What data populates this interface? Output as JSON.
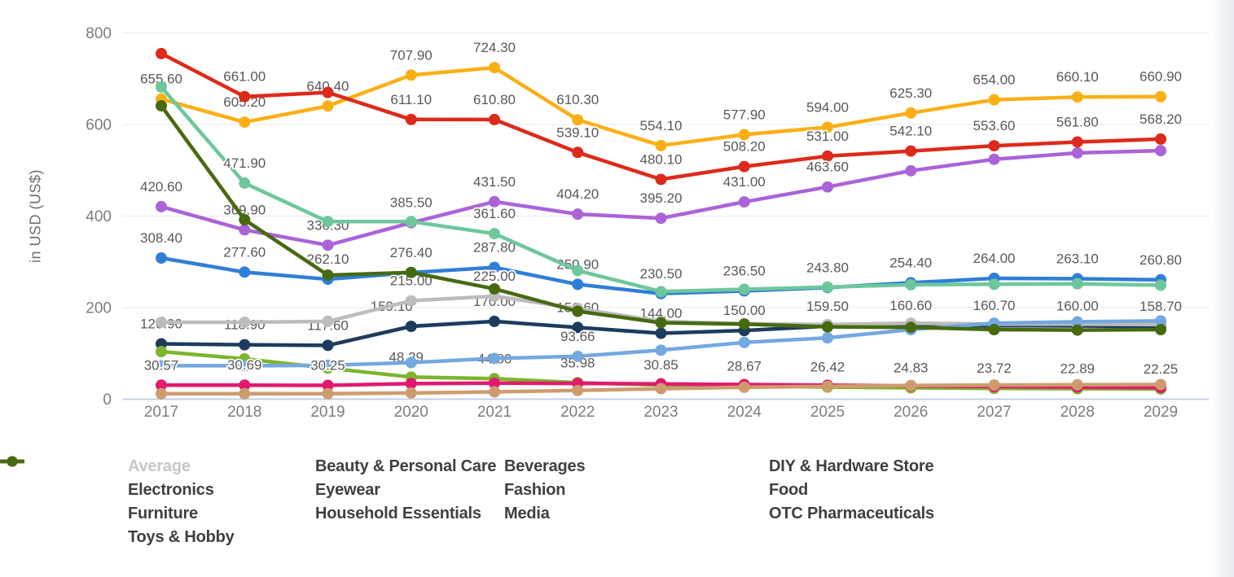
{
  "y_axis": {
    "title": "in USD (US$)",
    "ticks": [
      "0",
      "200",
      "400",
      "600",
      "800"
    ],
    "tick_values": [
      0,
      200,
      400,
      600,
      800
    ]
  },
  "x_axis": {
    "years": [
      "2017",
      "2018",
      "2019",
      "2020",
      "2021",
      "2022",
      "2023",
      "2024",
      "2025",
      "2026",
      "2027",
      "2028",
      "2029"
    ]
  },
  "chart_data": {
    "type": "line",
    "title": "",
    "ylabel": "in USD (US$)",
    "ylim": [
      0,
      800
    ],
    "grid": true,
    "legend_position": "bottom",
    "x": [
      2017,
      2018,
      2019,
      2020,
      2021,
      2022,
      2023,
      2024,
      2025,
      2026,
      2027,
      2028,
      2029
    ],
    "series": [
      {
        "name": "Average",
        "color": "#d2d2d2",
        "hidden": true,
        "values": []
      },
      {
        "name": "Beauty & Personal Care",
        "color": "#2f7ed8",
        "hidden": false,
        "values": [
          308.4,
          277.6,
          262.1,
          276.4,
          287.8,
          250.9,
          230.5,
          236.5,
          243.8,
          254.4,
          264.0,
          263.1,
          260.8
        ],
        "labels": {
          "0": "308.40",
          "1": "277.60",
          "2": "262.10",
          "3": "276.40",
          "4": "287.80",
          "5": "250.90",
          "6": "230.50",
          "7": "236.50",
          "8": "243.80",
          "9": "254.40",
          "10": "264.00",
          "11": "263.10",
          "12": "260.80"
        }
      },
      {
        "name": "Beverages",
        "color": "#1d3b5d",
        "hidden": false,
        "values": [
          120.9,
          118.9,
          117.6,
          159.1,
          170.0,
          156.6,
          144.0,
          150.0,
          159.5,
          160.6,
          160.7,
          160.0,
          158.7
        ],
        "labels": {
          "0": "120.90",
          "1": "118.90",
          "2": "117.60",
          "3": "159.10",
          "4": "170.00",
          "5": "156.60",
          "6": "144.00",
          "7": "150.00",
          "8": "159.50",
          "9": "160.60",
          "10": "160.70",
          "11": "160.00",
          "12": "158.70"
        },
        "label_dx": {
          "3": -24
        }
      },
      {
        "name": "DIY & Hardware Store",
        "color": "#bcbcbc",
        "hidden": false,
        "values": [
          168,
          168,
          170,
          215.0,
          225.0,
          198,
          170,
          165,
          163,
          166,
          164,
          164,
          163
        ],
        "labels": {
          "3": "215.00",
          "4": "225.00"
        }
      },
      {
        "name": "Electronics",
        "color": "#fbaf17",
        "hidden": false,
        "values": [
          655.6,
          605.2,
          640.4,
          707.9,
          724.3,
          610.3,
          554.1,
          577.9,
          594.0,
          625.3,
          654.0,
          660.1,
          660.9
        ],
        "labels": {
          "0": "655.60",
          "1": "605.20",
          "2": "640.40",
          "3": "707.90",
          "4": "724.30",
          "5": "610.30",
          "6": "554.10",
          "7": "577.90",
          "8": "594.00",
          "9": "625.30",
          "10": "654.00",
          "11": "660.10",
          "12": "660.90"
        }
      },
      {
        "name": "Eyewear",
        "color": "#7cb52c",
        "hidden": false,
        "values": [
          104,
          88,
          68,
          48.29,
          44.8,
          35.98,
          30.85,
          28.67,
          26.42,
          24.83,
          23.72,
          22.89,
          22.25
        ],
        "labels": {
          "3": "48.29",
          "4": "44.80",
          "5": "35.98",
          "6": "30.85",
          "7": "28.67",
          "8": "26.42",
          "9": "24.83",
          "10": "23.72",
          "11": "22.89",
          "12": "22.25"
        },
        "label_dx": {
          "3": -6
        }
      },
      {
        "name": "Fashion",
        "color": "#dd2a1b",
        "hidden": false,
        "values": [
          755,
          661.0,
          670,
          611.1,
          610.8,
          539.1,
          480.1,
          508.2,
          531.0,
          542.1,
          553.6,
          561.8,
          568.2
        ],
        "labels": {
          "1": "661.00",
          "3": "611.10",
          "4": "610.80",
          "5": "539.10",
          "6": "480.10",
          "7": "508.20",
          "8": "531.00",
          "9": "542.10",
          "10": "553.60",
          "11": "561.80",
          "12": "568.20"
        }
      },
      {
        "name": "Food",
        "color": "#ab63d8",
        "hidden": false,
        "values": [
          420.6,
          369.9,
          336.3,
          385.5,
          431.5,
          404.2,
          395.2,
          431.0,
          463.6,
          499,
          524,
          538,
          543
        ],
        "labels": {
          "0": "420.60",
          "1": "369.90",
          "2": "336.30",
          "3": "385.50",
          "4": "431.50",
          "5": "404.20",
          "6": "395.20",
          "7": "431.00",
          "8": "463.60"
        }
      },
      {
        "name": "Furniture",
        "color": "#6ec79b",
        "hidden": false,
        "values": [
          682,
          471.9,
          388,
          388,
          361.6,
          281,
          235,
          240,
          245,
          250,
          251,
          252,
          249
        ],
        "labels": {
          "1": "471.90",
          "4": "361.60"
        }
      },
      {
        "name": "Household Essentials",
        "color": "#73a8e0",
        "hidden": false,
        "values": [
          73,
          73,
          74,
          80,
          89,
          93.66,
          107,
          124,
          134,
          152,
          166,
          169,
          171
        ],
        "labels": {
          "5": "93.66"
        }
      },
      {
        "name": "Media",
        "color": "#e11a6f",
        "hidden": false,
        "values": [
          30.57,
          30.69,
          30.25,
          34,
          35,
          34.5,
          33.5,
          32,
          30.5,
          29,
          27.5,
          26.5,
          25.5
        ],
        "labels": {
          "0": "30.57",
          "1": "30.69",
          "2": "30.25"
        }
      },
      {
        "name": "OTC Pharmaceuticals",
        "color": "#cd9c6e",
        "hidden": false,
        "values": [
          12,
          12,
          12,
          13.5,
          16,
          19,
          23,
          26,
          28,
          30,
          31,
          31.5,
          32
        ],
        "labels": {}
      },
      {
        "name": "Toys & Hobby",
        "color": "#466a10",
        "hidden": false,
        "values": [
          641,
          392,
          271,
          277,
          241,
          192,
          167,
          164,
          158,
          157,
          152,
          151,
          152
        ],
        "labels": {}
      }
    ]
  },
  "legend": {
    "note": "entries mirror chart_data.series; Average entry is disabled (toggled off)"
  }
}
